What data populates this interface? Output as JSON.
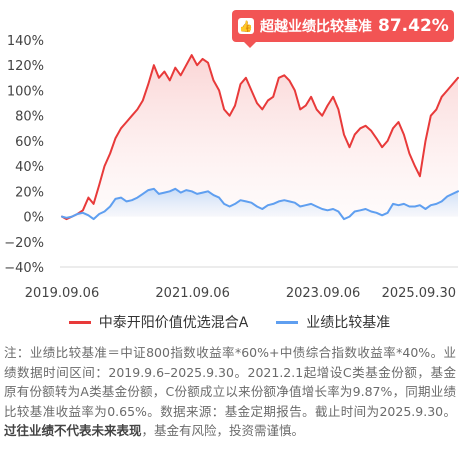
{
  "badge": {
    "icon": "thumbs-up-icon",
    "label": "超越业绩比较基准",
    "value": "87.42%"
  },
  "chart_data": {
    "type": "line",
    "title": "",
    "xlabel": "",
    "ylabel": "",
    "ylim": [
      -40,
      140
    ],
    "y_ticks": [
      -40,
      -20,
      0,
      20,
      40,
      60,
      80,
      100,
      120,
      140
    ],
    "y_tick_labels": [
      "−40%",
      "−20%",
      "0%",
      "20%",
      "40%",
      "60%",
      "80%",
      "100%",
      "120%",
      "140%"
    ],
    "x_tick_labels": [
      "2019.09.06",
      "2021.09.06",
      "2023.09.06",
      "2025.09.30"
    ],
    "x_tick_dates": [
      "2019-09-06",
      "2021-09-06",
      "2023-09-06",
      "2025-09-30"
    ],
    "grid": false,
    "legend_position": "bottom",
    "colors": {
      "fund": "#e83a3a",
      "benchmark": "#5f9ff0"
    },
    "series": [
      {
        "name": "中泰开阳价值优选混合A",
        "color": "#e83a3a",
        "x": [
          "2019-09-06",
          "2019-10-01",
          "2019-11-01",
          "2019-12-01",
          "2020-01-01",
          "2020-02-01",
          "2020-03-01",
          "2020-04-01",
          "2020-05-01",
          "2020-06-01",
          "2020-07-01",
          "2020-08-01",
          "2020-09-01",
          "2020-10-01",
          "2020-11-01",
          "2020-12-01",
          "2021-01-01",
          "2021-02-01",
          "2021-03-01",
          "2021-04-01",
          "2021-05-01",
          "2021-06-01",
          "2021-07-01",
          "2021-08-01",
          "2021-09-01",
          "2021-10-01",
          "2021-11-01",
          "2021-12-01",
          "2022-01-01",
          "2022-02-01",
          "2022-03-01",
          "2022-04-01",
          "2022-05-01",
          "2022-06-01",
          "2022-07-01",
          "2022-08-01",
          "2022-09-01",
          "2022-10-01",
          "2022-11-01",
          "2022-12-01",
          "2023-01-01",
          "2023-02-01",
          "2023-03-01",
          "2023-04-01",
          "2023-05-01",
          "2023-06-01",
          "2023-07-01",
          "2023-08-01",
          "2023-09-01",
          "2023-10-01",
          "2023-11-01",
          "2023-12-01",
          "2024-01-01",
          "2024-02-01",
          "2024-03-01",
          "2024-04-01",
          "2024-05-01",
          "2024-06-01",
          "2024-07-01",
          "2024-08-01",
          "2024-09-01",
          "2024-10-01",
          "2024-11-01",
          "2024-12-01",
          "2025-01-01",
          "2025-02-01",
          "2025-03-01",
          "2025-04-01",
          "2025-05-01",
          "2025-06-01",
          "2025-07-01",
          "2025-08-01",
          "2025-09-30"
        ],
        "values": [
          0,
          -2,
          0,
          2,
          5,
          15,
          10,
          25,
          40,
          50,
          62,
          70,
          75,
          80,
          85,
          92,
          105,
          120,
          110,
          115,
          108,
          118,
          112,
          120,
          128,
          120,
          125,
          122,
          108,
          100,
          85,
          80,
          88,
          105,
          110,
          100,
          90,
          85,
          92,
          95,
          110,
          112,
          108,
          100,
          85,
          88,
          95,
          85,
          80,
          88,
          95,
          85,
          65,
          55,
          65,
          70,
          72,
          68,
          62,
          55,
          60,
          70,
          75,
          65,
          50,
          40,
          32,
          60,
          80,
          85,
          95,
          100,
          110
        ]
      },
      {
        "name": "业绩比较基准",
        "color": "#5f9ff0",
        "x": [
          "2019-09-06",
          "2019-10-01",
          "2019-11-01",
          "2019-12-01",
          "2020-01-01",
          "2020-02-01",
          "2020-03-01",
          "2020-04-01",
          "2020-05-01",
          "2020-06-01",
          "2020-07-01",
          "2020-08-01",
          "2020-09-01",
          "2020-10-01",
          "2020-11-01",
          "2020-12-01",
          "2021-01-01",
          "2021-02-01",
          "2021-03-01",
          "2021-04-01",
          "2021-05-01",
          "2021-06-01",
          "2021-07-01",
          "2021-08-01",
          "2021-09-01",
          "2021-10-01",
          "2021-11-01",
          "2021-12-01",
          "2022-01-01",
          "2022-02-01",
          "2022-03-01",
          "2022-04-01",
          "2022-05-01",
          "2022-06-01",
          "2022-07-01",
          "2022-08-01",
          "2022-09-01",
          "2022-10-01",
          "2022-11-01",
          "2022-12-01",
          "2023-01-01",
          "2023-02-01",
          "2023-03-01",
          "2023-04-01",
          "2023-05-01",
          "2023-06-01",
          "2023-07-01",
          "2023-08-01",
          "2023-09-01",
          "2023-10-01",
          "2023-11-01",
          "2023-12-01",
          "2024-01-01",
          "2024-02-01",
          "2024-03-01",
          "2024-04-01",
          "2024-05-01",
          "2024-06-01",
          "2024-07-01",
          "2024-08-01",
          "2024-09-01",
          "2024-10-01",
          "2024-11-01",
          "2024-12-01",
          "2025-01-01",
          "2025-02-01",
          "2025-03-01",
          "2025-04-01",
          "2025-05-01",
          "2025-06-01",
          "2025-07-01",
          "2025-08-01",
          "2025-09-30"
        ],
        "values": [
          0,
          -1,
          0,
          2,
          3,
          1,
          -2,
          2,
          4,
          8,
          14,
          15,
          12,
          13,
          15,
          18,
          21,
          22,
          18,
          19,
          20,
          22,
          19,
          21,
          20,
          18,
          19,
          20,
          17,
          15,
          10,
          8,
          10,
          13,
          12,
          11,
          8,
          6,
          9,
          10,
          12,
          13,
          12,
          11,
          8,
          9,
          10,
          8,
          6,
          5,
          6,
          4,
          -2,
          0,
          4,
          5,
          6,
          4,
          3,
          1,
          3,
          10,
          9,
          10,
          8,
          8,
          9,
          6,
          9,
          10,
          12,
          16,
          20
        ]
      }
    ]
  },
  "footnote": {
    "text1": "注：业绩比较基准＝中证800指数收益率*60%+中债综合指数收益率*40%。业绩数据时间区间：2019.9.6–2025.9.30。2021.2.1起增设C类基金份额，基金原有份额转为A类基金份额，C份额成立以来份额净值增长率为9.87%，同期业绩比较基准收益率为0.65%。数据来源：基金定期报告。截止时间为2025.9.30。",
    "bold": "过往业绩不代表未来表现",
    "text2": "，基金有风险，投资需谨慎。"
  }
}
